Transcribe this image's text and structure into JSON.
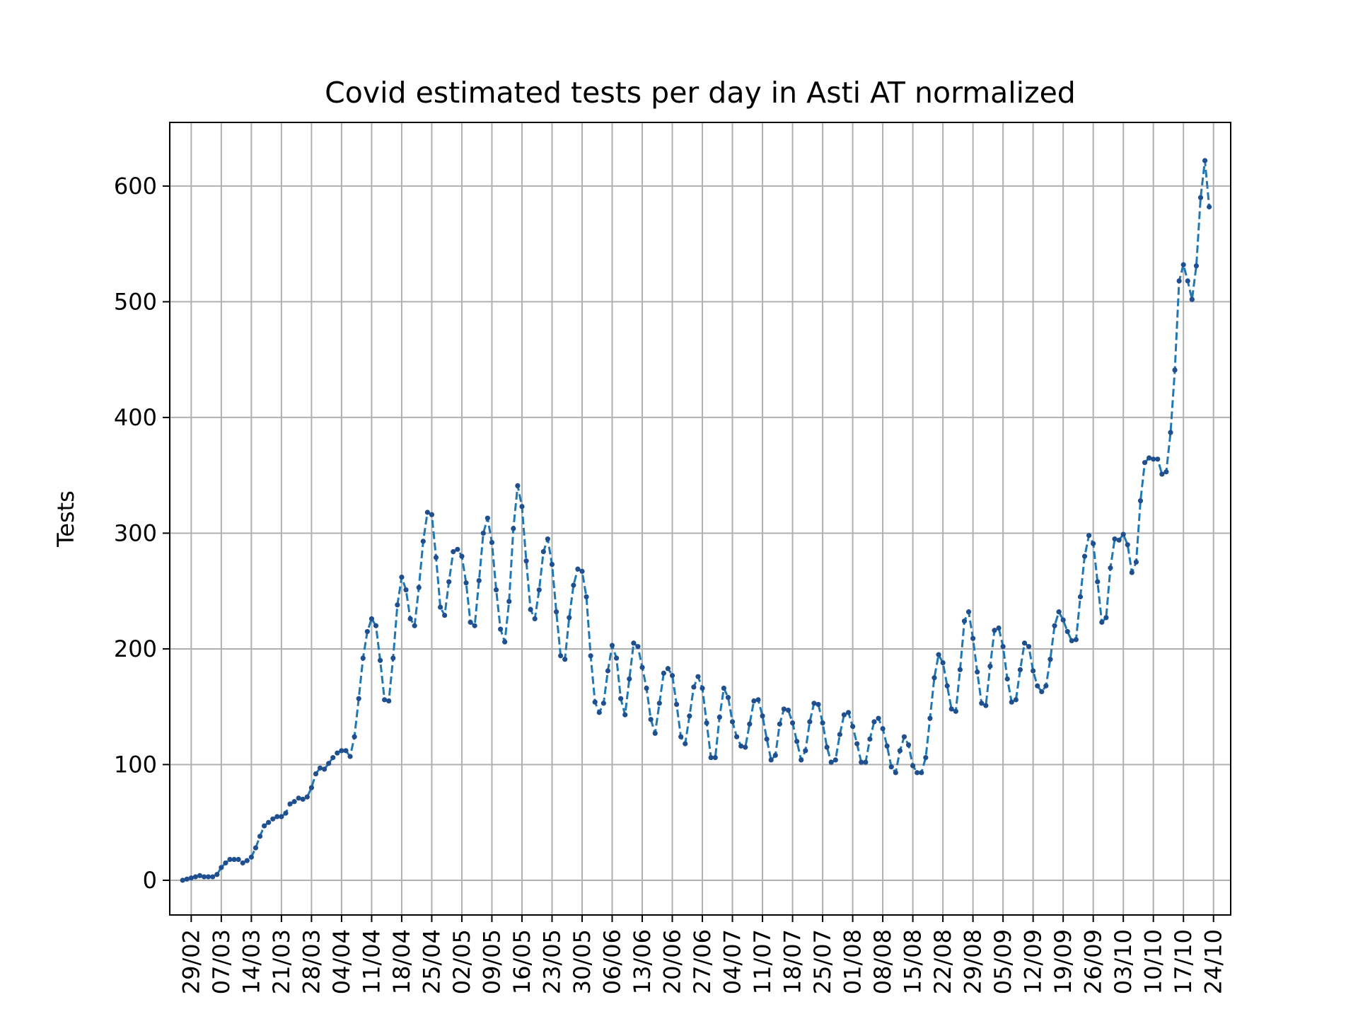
{
  "chart_data": {
    "type": "line",
    "title": "Covid estimated tests per day in Asti AT normalized",
    "xlabel": "",
    "ylabel": "Tests",
    "ylim": [
      -30,
      655
    ],
    "xlim": [
      "2020-02-24",
      "2020-10-28"
    ],
    "grid": true,
    "legend": "none",
    "line_style": "dashed",
    "marker": "dot",
    "colors": {
      "line": "#1f77b4",
      "marker": "#1f4f8f",
      "grid": "#b0b0b0"
    },
    "y_ticks": [
      0,
      100,
      200,
      300,
      400,
      500,
      600
    ],
    "x_tick_labels": [
      "29/02",
      "07/03",
      "14/03",
      "21/03",
      "28/03",
      "04/04",
      "11/04",
      "18/04",
      "25/04",
      "02/05",
      "09/05",
      "16/05",
      "23/05",
      "30/05",
      "06/06",
      "13/06",
      "20/06",
      "27/06",
      "04/07",
      "11/07",
      "18/07",
      "25/07",
      "01/08",
      "08/08",
      "15/08",
      "22/08",
      "29/08",
      "05/09",
      "12/09",
      "19/09",
      "26/09",
      "03/10",
      "10/10",
      "17/10",
      "24/10"
    ],
    "x_tick_dates": [
      "2020-02-29",
      "2020-03-07",
      "2020-03-14",
      "2020-03-21",
      "2020-03-28",
      "2020-04-04",
      "2020-04-11",
      "2020-04-18",
      "2020-04-25",
      "2020-05-02",
      "2020-05-09",
      "2020-05-16",
      "2020-05-23",
      "2020-05-30",
      "2020-06-06",
      "2020-06-13",
      "2020-06-20",
      "2020-06-27",
      "2020-07-04",
      "2020-07-11",
      "2020-07-18",
      "2020-07-25",
      "2020-08-01",
      "2020-08-08",
      "2020-08-15",
      "2020-08-22",
      "2020-08-29",
      "2020-09-05",
      "2020-09-12",
      "2020-09-19",
      "2020-09-26",
      "2020-10-03",
      "2020-10-10",
      "2020-10-17",
      "2020-10-24"
    ],
    "x_start": "2020-02-27",
    "series": [
      {
        "values": [
          0,
          1,
          2,
          3,
          4,
          3,
          3,
          3,
          5,
          11,
          15,
          18,
          18,
          18,
          15,
          17,
          20,
          28,
          38,
          47,
          50,
          53,
          55,
          55,
          58,
          66,
          68,
          71,
          70,
          72,
          80,
          92,
          97,
          96,
          101,
          106,
          110,
          112,
          112,
          107,
          124,
          157,
          192,
          215,
          226,
          220,
          190,
          156,
          155,
          192,
          238,
          262,
          251,
          226,
          220,
          253,
          293,
          318,
          316,
          279,
          236,
          229,
          258,
          284,
          286,
          280,
          257,
          223,
          220,
          259,
          300,
          313,
          292,
          251,
          217,
          206,
          241,
          304,
          341,
          323,
          276,
          234,
          226,
          251,
          284,
          295,
          273,
          232,
          194,
          191,
          227,
          255,
          269,
          267,
          245,
          194,
          154,
          145,
          153,
          181,
          203,
          192,
          157,
          143,
          174,
          205,
          202,
          184,
          166,
          139,
          127,
          153,
          179,
          183,
          177,
          152,
          124,
          118,
          142,
          167,
          176,
          166,
          136,
          106,
          106,
          141,
          166,
          158,
          137,
          124,
          116,
          115,
          135,
          155,
          156,
          142,
          122,
          104,
          108,
          135,
          148,
          147,
          136,
          120,
          104,
          112,
          137,
          153,
          152,
          136,
          115,
          102,
          104,
          126,
          143,
          145,
          133,
          118,
          102,
          102,
          122,
          137,
          140,
          131,
          116,
          98,
          93,
          112,
          124,
          117,
          99,
          93,
          93,
          106,
          140,
          175,
          195,
          188,
          168,
          148,
          146,
          182,
          224,
          232,
          209,
          180,
          153,
          151,
          185,
          216,
          218,
          202,
          174,
          154,
          156,
          182,
          205,
          202,
          181,
          168,
          163,
          168,
          191,
          220,
          232,
          225,
          215,
          207,
          208,
          245,
          280,
          298,
          291,
          258,
          223,
          227,
          270,
          295,
          294,
          299,
          290,
          266,
          275,
          328,
          361,
          365,
          364,
          364,
          351,
          353,
          387,
          441,
          518,
          532,
          518,
          502,
          531,
          590,
          622,
          582
        ]
      }
    ]
  }
}
